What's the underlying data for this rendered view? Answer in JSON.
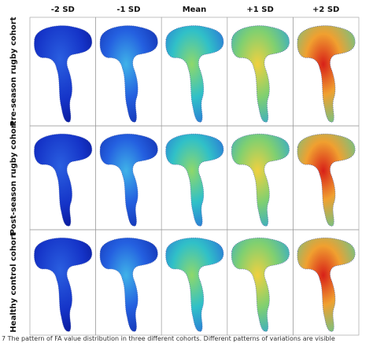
{
  "figure": {
    "columns": [
      "-2 SD",
      "-1 SD",
      "Mean",
      "+1 SD",
      "+2 SD"
    ],
    "rows": [
      "Pre-season rugby cohort",
      "Post-season rugby cohort",
      "Healthy control cohort"
    ],
    "caption": "7 The pattern of FA value distribution in three different cohorts. Different patterns of variations are visible"
  }
}
